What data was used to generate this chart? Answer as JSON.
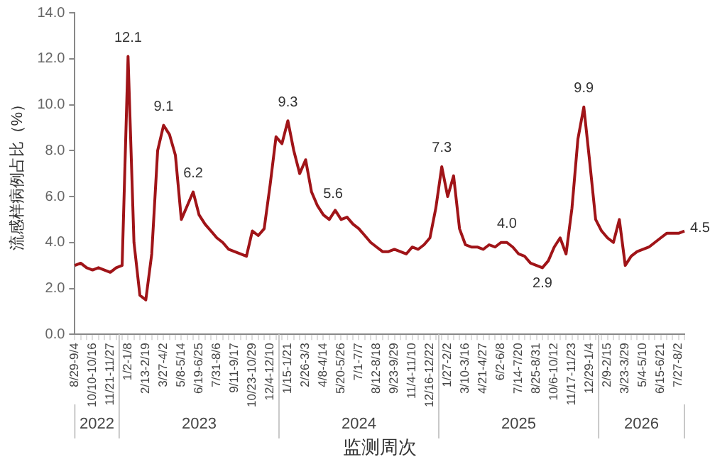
{
  "chart_data": {
    "type": "line",
    "xlabel": "监测周次",
    "ylabel": "流感样病例占比（%）",
    "categories": [
      "8/29-9/4",
      null,
      null,
      "10/10-10/16",
      null,
      null,
      "11/21-11/27",
      null,
      null,
      "1/2-1/8",
      null,
      null,
      "2/13-2/19",
      null,
      null,
      "3/27-4/2",
      null,
      null,
      "5/8-5/14",
      null,
      null,
      "6/19-6/25",
      null,
      null,
      "7/31-8/6",
      null,
      null,
      "9/11-9/17",
      null,
      null,
      "10/23-10/29",
      null,
      null,
      "12/4-12/10",
      null,
      null,
      "1/15-1/21",
      null,
      null,
      "2/26-3/3",
      null,
      null,
      "4/8-4/14",
      null,
      null,
      "5/20-5/26",
      null,
      null,
      "7/1-7/7",
      null,
      null,
      "8/12-8/18",
      null,
      null,
      "9/23-9/29",
      null,
      null,
      "11/4-11/10",
      null,
      null,
      "12/16-12/22",
      null,
      null,
      "1/27-2/2",
      null,
      null,
      "3/10-3/16",
      null,
      null,
      "4/21-4/27",
      null,
      null,
      "6/2-6/8",
      null,
      null,
      "7/14-7/20",
      null,
      null,
      "8/25-8/31",
      null,
      null,
      "10/6-10/12",
      null,
      null,
      "11/17-11/23",
      null,
      null,
      "12/29-1/4",
      null,
      null,
      "2/9-2/15",
      null,
      null,
      "3/23-3/29",
      null,
      null,
      "5/4-5/10",
      null,
      null,
      "6/15-6/21",
      null,
      null,
      "7/27-8/2",
      null
    ],
    "series": [
      {
        "color": "#a01418",
        "values": [
          3.0,
          3.1,
          2.9,
          2.8,
          2.9,
          2.8,
          2.7,
          2.9,
          3.0,
          12.1,
          4.0,
          1.7,
          1.5,
          3.5,
          8.0,
          9.1,
          8.7,
          7.8,
          5.0,
          5.6,
          6.2,
          5.2,
          4.8,
          4.5,
          4.2,
          4.0,
          3.7,
          3.6,
          3.5,
          3.4,
          4.5,
          4.3,
          4.6,
          6.5,
          8.6,
          8.3,
          9.3,
          8.0,
          7.0,
          7.6,
          6.2,
          5.6,
          5.2,
          5.0,
          5.4,
          5.0,
          5.1,
          4.8,
          4.6,
          4.3,
          4.0,
          3.8,
          3.6,
          3.6,
          3.7,
          3.6,
          3.5,
          3.8,
          3.7,
          3.9,
          4.2,
          5.5,
          7.3,
          6.0,
          6.9,
          4.6,
          3.9,
          3.8,
          3.8,
          3.7,
          3.9,
          3.8,
          4.0,
          4.0,
          3.8,
          3.5,
          3.4,
          3.1,
          3.0,
          2.9,
          3.2,
          3.8,
          4.2,
          3.5,
          5.5,
          8.5,
          9.9,
          7.5,
          5.0,
          4.5,
          4.2,
          4.0,
          5.0,
          3.0,
          3.4,
          3.6,
          3.7,
          3.8,
          4.0,
          4.2,
          4.4,
          4.4,
          4.4,
          4.5
        ],
        "value_labels": [
          null,
          null,
          null,
          null,
          null,
          null,
          null,
          null,
          null,
          "12.1",
          null,
          null,
          null,
          null,
          null,
          "9.1",
          null,
          null,
          null,
          null,
          "6.2",
          null,
          null,
          null,
          null,
          null,
          null,
          null,
          null,
          null,
          null,
          null,
          null,
          null,
          null,
          null,
          "9.3",
          null,
          null,
          null,
          null,
          "5.6",
          null,
          null,
          null,
          null,
          null,
          null,
          null,
          null,
          null,
          null,
          null,
          null,
          null,
          null,
          null,
          null,
          null,
          null,
          null,
          null,
          "7.3",
          null,
          null,
          null,
          null,
          null,
          null,
          null,
          null,
          null,
          null,
          "4.0",
          null,
          null,
          null,
          null,
          null,
          "2.9",
          null,
          null,
          null,
          null,
          null,
          null,
          "9.9",
          null,
          null,
          null,
          null,
          null,
          null,
          null,
          null,
          null,
          null,
          null,
          null,
          null,
          null,
          null,
          null,
          "4.5"
        ]
      }
    ],
    "ylim": [
      0,
      14
    ],
    "yticks": [
      {
        "value": 0,
        "label": "0.0"
      },
      {
        "value": 2,
        "label": "2.0"
      },
      {
        "value": 4,
        "label": "4.0"
      },
      {
        "value": 6,
        "label": "6.0"
      },
      {
        "value": 8,
        "label": "8.0"
      },
      {
        "value": 10,
        "label": "10.0"
      },
      {
        "value": 12,
        "label": "12.0"
      },
      {
        "value": 14,
        "label": "14.0"
      }
    ],
    "grid": false,
    "legend": false,
    "marker": "none",
    "line_style": "solid",
    "annotations": [
      "2022",
      "2023",
      "2024",
      "2025",
      "2026"
    ]
  }
}
